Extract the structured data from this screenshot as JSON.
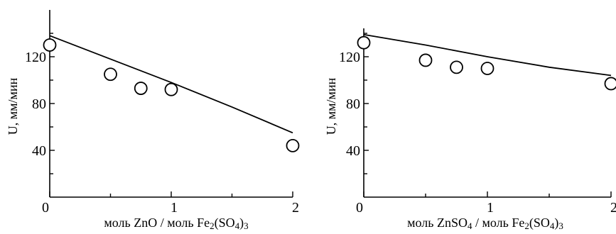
{
  "chart_data": [
    {
      "type": "scatter",
      "xlabel_parts": [
        {
          "text": "моль ZnO / моль Fe",
          "sub": false
        },
        {
          "text": "2",
          "sub": true
        },
        {
          "text": "(SO",
          "sub": false
        },
        {
          "text": "4",
          "sub": true
        },
        {
          "text": ")",
          "sub": false
        },
        {
          "text": "3",
          "sub": true
        }
      ],
      "ylabel": "U, мм/мин",
      "xlim": [
        0,
        2
      ],
      "ylim": [
        0,
        160
      ],
      "x_tick_labels": [
        {
          "x": 0,
          "label": "0"
        },
        {
          "x": 1,
          "label": "1"
        },
        {
          "x": 2,
          "label": "2"
        }
      ],
      "y_tick_labels": [
        {
          "y": 40,
          "label": "40"
        },
        {
          "y": 80,
          "label": "80"
        },
        {
          "y": 120,
          "label": "120"
        }
      ],
      "x_minor_ticks": [
        0.5,
        1.5
      ],
      "y_minor_ticks": [
        20,
        60,
        100,
        140
      ],
      "points": [
        {
          "x": 0,
          "y": 130
        },
        {
          "x": 0.5,
          "y": 105
        },
        {
          "x": 0.75,
          "y": 93
        },
        {
          "x": 1,
          "y": 92
        },
        {
          "x": 2,
          "y": 44
        }
      ],
      "fit_curve": {
        "x": [
          0,
          0.5,
          1,
          1.5,
          2
        ],
        "y": [
          138,
          118,
          98,
          77,
          55
        ]
      }
    },
    {
      "type": "scatter",
      "xlabel_parts": [
        {
          "text": "моль ZnSO",
          "sub": false
        },
        {
          "text": "4",
          "sub": true
        },
        {
          "text": " / моль Fe",
          "sub": false
        },
        {
          "text": "2",
          "sub": true
        },
        {
          "text": "(SO",
          "sub": false
        },
        {
          "text": "4",
          "sub": true
        },
        {
          "text": ")",
          "sub": false
        },
        {
          "text": "3",
          "sub": true
        }
      ],
      "ylabel": "U, мм/мин",
      "xlim": [
        0,
        2
      ],
      "ylim": [
        0,
        160
      ],
      "x_tick_labels": [
        {
          "x": 0,
          "label": "0"
        },
        {
          "x": 1,
          "label": "1"
        },
        {
          "x": 2,
          "label": "2"
        }
      ],
      "y_tick_labels": [
        {
          "y": 40,
          "label": "40"
        },
        {
          "y": 80,
          "label": "80"
        },
        {
          "y": 120,
          "label": "120"
        }
      ],
      "x_minor_ticks": [
        0.5,
        1.5
      ],
      "y_minor_ticks": [
        20,
        60,
        100,
        140
      ],
      "points": [
        {
          "x": 0,
          "y": 132
        },
        {
          "x": 0.5,
          "y": 117
        },
        {
          "x": 0.75,
          "y": 111
        },
        {
          "x": 1,
          "y": 110
        },
        {
          "x": 2,
          "y": 97
        }
      ],
      "fit_curve": {
        "x": [
          0,
          0.5,
          1,
          1.5,
          2
        ],
        "y": [
          139,
          130,
          120,
          111,
          104
        ]
      }
    }
  ]
}
